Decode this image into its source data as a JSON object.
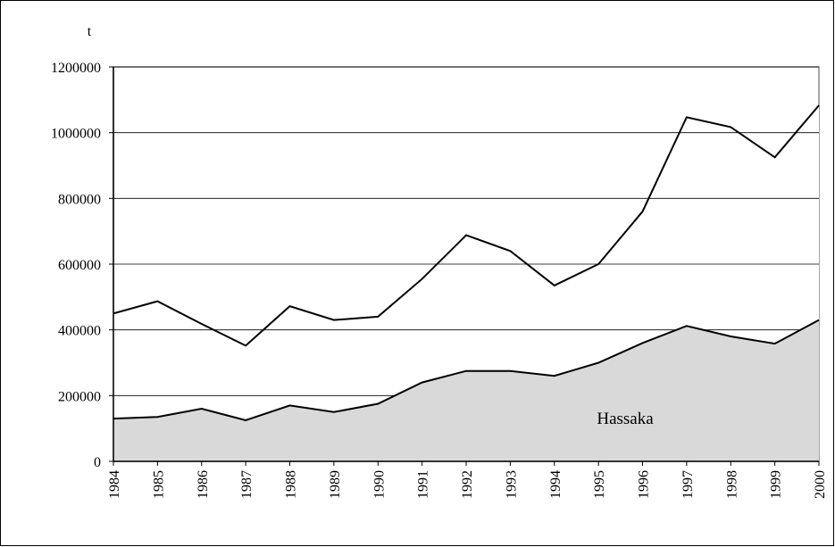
{
  "chart_data": {
    "type": "area",
    "y_label": "t",
    "categories": [
      "1984",
      "1985",
      "1986",
      "1987",
      "1988",
      "1989",
      "1990",
      "1991",
      "1992",
      "1993",
      "1994",
      "1995",
      "1996",
      "1997",
      "1998",
      "1999",
      "2000"
    ],
    "series": [
      {
        "name": "Hassaka",
        "color": "#d9d9d9",
        "values": [
          130000,
          135000,
          160000,
          125000,
          170000,
          150000,
          175000,
          240000,
          275000,
          275000,
          260000,
          300000,
          360000,
          412000,
          380000,
          358000,
          430000
        ]
      },
      {
        "color": "#ffffff",
        "values": [
          450000,
          487000,
          418000,
          352000,
          472000,
          430000,
          440000,
          555000,
          688000,
          640000,
          535000,
          600000,
          760000,
          1047000,
          1017000,
          925000,
          1083000
        ]
      }
    ],
    "ylim": [
      0,
      1200000
    ],
    "yticks": [
      0,
      200000,
      400000,
      600000,
      800000,
      1000000,
      1200000
    ],
    "grid": true
  }
}
